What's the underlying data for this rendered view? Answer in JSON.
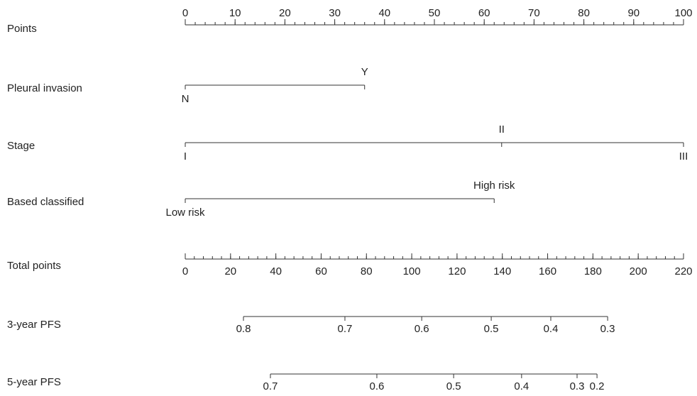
{
  "chart_data": {
    "type": "nomogram",
    "points_axis": {
      "label": "Points",
      "xlim": [
        0,
        100
      ],
      "xticks": [
        0,
        10,
        20,
        30,
        40,
        50,
        60,
        70,
        80,
        90,
        100
      ],
      "minor_step": 2
    },
    "variables": [
      {
        "label": "Pleural invasion",
        "levels": [
          {
            "name": "N",
            "points": 0
          },
          {
            "name": "Y",
            "points": 36
          }
        ]
      },
      {
        "label": "Stage",
        "levels": [
          {
            "name": "I",
            "points": 0
          },
          {
            "name": "II",
            "points": 63.5
          },
          {
            "name": "III",
            "points": 100
          }
        ]
      },
      {
        "label": "Based classified",
        "levels": [
          {
            "name": "Low risk",
            "points": 0
          },
          {
            "name": "High risk",
            "points": 62
          }
        ]
      }
    ],
    "total_axis": {
      "label": "Total points",
      "xlim": [
        0,
        220
      ],
      "xticks": [
        0,
        20,
        40,
        60,
        80,
        100,
        120,
        140,
        160,
        180,
        200,
        220
      ],
      "minor_step": 4
    },
    "probability_axes": [
      {
        "label": "3-year PFS",
        "ticks": [
          {
            "probability": 0.8,
            "total_points": 25.7
          },
          {
            "probability": 0.7,
            "total_points": 70.5
          },
          {
            "probability": 0.6,
            "total_points": 104.4
          },
          {
            "probability": 0.5,
            "total_points": 135.1
          },
          {
            "probability": 0.4,
            "total_points": 161.4
          },
          {
            "probability": 0.3,
            "total_points": 186.5
          }
        ]
      },
      {
        "label": "5-year PFS",
        "ticks": [
          {
            "probability": 0.7,
            "total_points": 37.6
          },
          {
            "probability": 0.6,
            "total_points": 84.6
          },
          {
            "probability": 0.5,
            "total_points": 118.5
          },
          {
            "probability": 0.4,
            "total_points": 148.5
          },
          {
            "probability": 0.3,
            "total_points": 173
          },
          {
            "probability": 0.2,
            "total_points": 181.8
          }
        ]
      }
    ]
  }
}
